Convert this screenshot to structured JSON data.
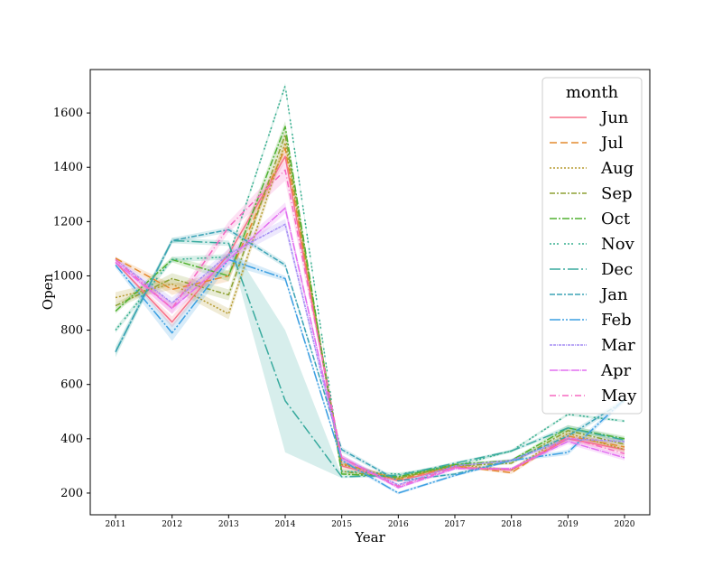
{
  "chart_data": {
    "type": "line",
    "xlabel": "Year",
    "ylabel": "Open",
    "xlim": [
      2011,
      2020
    ],
    "ylim": [
      120,
      1760
    ],
    "xticks": [
      "2011",
      "2012",
      "2013",
      "2014",
      "2015",
      "2016",
      "2017",
      "2018",
      "2019",
      "2020"
    ],
    "yticks": [
      200,
      400,
      600,
      800,
      1000,
      1200,
      1400,
      1600
    ],
    "grid": false,
    "legend": {
      "title": "month",
      "placement": "top-right"
    },
    "x": [
      2011,
      2012,
      2013,
      2014,
      2015,
      2016,
      2017,
      2018,
      2019,
      2020
    ],
    "series": [
      {
        "name": "Jun",
        "color": "#f77189",
        "dash": "",
        "values": [
          1050,
          830,
          1080,
          1440,
          300,
          245,
          295,
          285,
          400,
          360
        ],
        "band": [
          [
            1050,
            1050
          ],
          [
            810,
            850
          ],
          [
            1060,
            1100
          ],
          [
            1420,
            1460
          ],
          [
            290,
            310
          ],
          [
            240,
            250
          ],
          [
            290,
            300
          ],
          [
            280,
            290
          ],
          [
            390,
            410
          ],
          [
            350,
            370
          ]
        ]
      },
      {
        "name": "Jul",
        "color": "#e48a2f",
        "dash": "8,4",
        "values": [
          1065,
          950,
          1000,
          1470,
          310,
          250,
          300,
          275,
          410,
          370
        ],
        "band": [
          [
            1060,
            1070
          ],
          [
            930,
            970
          ],
          [
            980,
            1020
          ],
          [
            1450,
            1490
          ],
          [
            300,
            320
          ],
          [
            245,
            255
          ],
          [
            295,
            305
          ],
          [
            270,
            280
          ],
          [
            400,
            420
          ],
          [
            360,
            380
          ]
        ]
      },
      {
        "name": "Aug",
        "color": "#b59a2e",
        "dash": "2,2",
        "values": [
          920,
          970,
          860,
          1490,
          305,
          255,
          305,
          285,
          420,
          360
        ],
        "band": [
          [
            900,
            940
          ],
          [
            950,
            990
          ],
          [
            840,
            880
          ],
          [
            1470,
            1510
          ],
          [
            295,
            315
          ],
          [
            250,
            260
          ],
          [
            300,
            310
          ],
          [
            280,
            290
          ],
          [
            410,
            430
          ],
          [
            350,
            370
          ]
        ]
      },
      {
        "name": "Sep",
        "color": "#8ea133",
        "dash": "6,2,2,2",
        "values": [
          890,
          990,
          930,
          1520,
          280,
          255,
          300,
          310,
          430,
          380
        ],
        "band": [
          [
            880,
            900
          ],
          [
            970,
            1010
          ],
          [
            910,
            950
          ],
          [
            1500,
            1540
          ],
          [
            270,
            290
          ],
          [
            250,
            260
          ],
          [
            295,
            305
          ],
          [
            305,
            315
          ],
          [
            420,
            440
          ],
          [
            370,
            390
          ]
        ]
      },
      {
        "name": "Oct",
        "color": "#50b131",
        "dash": "8,2,2,2",
        "values": [
          870,
          1060,
          1000,
          1550,
          270,
          260,
          305,
          320,
          440,
          400
        ],
        "band": [
          [
            860,
            880
          ],
          [
            1050,
            1070
          ],
          [
            980,
            1020
          ],
          [
            1530,
            1570
          ],
          [
            265,
            275
          ],
          [
            255,
            265
          ],
          [
            300,
            310
          ],
          [
            315,
            325
          ],
          [
            430,
            450
          ],
          [
            390,
            410
          ]
        ]
      },
      {
        "name": "Nov",
        "color": "#35ad8e",
        "dash": "2,2,2,2,2,6",
        "values": [
          800,
          1060,
          1070,
          1700,
          280,
          270,
          300,
          355,
          490,
          465
        ],
        "band": [
          [
            790,
            810
          ],
          [
            1050,
            1070
          ],
          [
            1060,
            1080
          ],
          [
            1690,
            1710
          ],
          [
            275,
            285
          ],
          [
            265,
            275
          ],
          [
            295,
            305
          ],
          [
            350,
            360
          ],
          [
            485,
            495
          ],
          [
            460,
            470
          ]
        ]
      },
      {
        "name": "Dec",
        "color": "#38aa9e",
        "dash": "12,3,2,3",
        "values": [
          720,
          1130,
          1120,
          540,
          260,
          265,
          310,
          355,
          440,
          395
        ],
        "band": [
          [
            700,
            740
          ],
          [
            1120,
            1140
          ],
          [
            1110,
            1130
          ],
          [
            350,
            800
          ],
          [
            255,
            265
          ],
          [
            260,
            270
          ],
          [
            305,
            315
          ],
          [
            350,
            360
          ],
          [
            430,
            450
          ],
          [
            385,
            405
          ]
        ]
      },
      {
        "name": "Jan",
        "color": "#3ba3b6",
        "dash": "6,2,6,2,2,2",
        "values": [
          720,
          1130,
          1170,
          1040,
          360,
          245,
          270,
          320,
          410,
          540
        ],
        "band": [
          [
            710,
            730
          ],
          [
            1120,
            1140
          ],
          [
            1160,
            1180
          ],
          [
            1030,
            1050
          ],
          [
            350,
            370
          ],
          [
            240,
            250
          ],
          [
            265,
            275
          ],
          [
            315,
            325
          ],
          [
            400,
            420
          ],
          [
            530,
            550
          ]
        ]
      },
      {
        "name": "Feb",
        "color": "#3c9fe2",
        "dash": "12,2,2,2,2,2",
        "values": [
          1040,
          790,
          1060,
          990,
          320,
          200,
          265,
          320,
          350,
          545
        ],
        "band": [
          [
            1030,
            1050
          ],
          [
            760,
            820
          ],
          [
            1040,
            1080
          ],
          [
            980,
            1000
          ],
          [
            310,
            330
          ],
          [
            195,
            205
          ],
          [
            260,
            270
          ],
          [
            315,
            325
          ],
          [
            340,
            360
          ],
          [
            535,
            555
          ]
        ]
      },
      {
        "name": "Mar",
        "color": "#a48cf4",
        "dash": "3,1,3,1,1,1",
        "values": [
          1060,
          900,
          1080,
          1190,
          330,
          230,
          300,
          320,
          400,
          390
        ],
        "band": [
          [
            1050,
            1070
          ],
          [
            880,
            920
          ],
          [
            1060,
            1100
          ],
          [
            1170,
            1210
          ],
          [
            320,
            340
          ],
          [
            225,
            235
          ],
          [
            295,
            305
          ],
          [
            315,
            325
          ],
          [
            390,
            410
          ],
          [
            380,
            400
          ]
        ]
      },
      {
        "name": "Apr",
        "color": "#e26ef0",
        "dash": "9,1,1,1",
        "values": [
          1050,
          880,
          1060,
          1250,
          330,
          220,
          290,
          290,
          390,
          330
        ],
        "band": [
          [
            1040,
            1060
          ],
          [
            860,
            900
          ],
          [
            1040,
            1080
          ],
          [
            1230,
            1270
          ],
          [
            320,
            340
          ],
          [
            215,
            225
          ],
          [
            285,
            295
          ],
          [
            285,
            295
          ],
          [
            380,
            400
          ],
          [
            320,
            340
          ]
        ]
      },
      {
        "name": "May",
        "color": "#f568c1",
        "dash": "7,3,1,3",
        "values": [
          1060,
          880,
          1180,
          1390,
          330,
          225,
          295,
          285,
          405,
          345
        ],
        "band": [
          [
            1050,
            1070
          ],
          [
            860,
            900
          ],
          [
            1160,
            1200
          ],
          [
            1350,
            1420
          ],
          [
            320,
            340
          ],
          [
            220,
            230
          ],
          [
            290,
            300
          ],
          [
            280,
            290
          ],
          [
            395,
            415
          ],
          [
            335,
            355
          ]
        ]
      }
    ]
  }
}
